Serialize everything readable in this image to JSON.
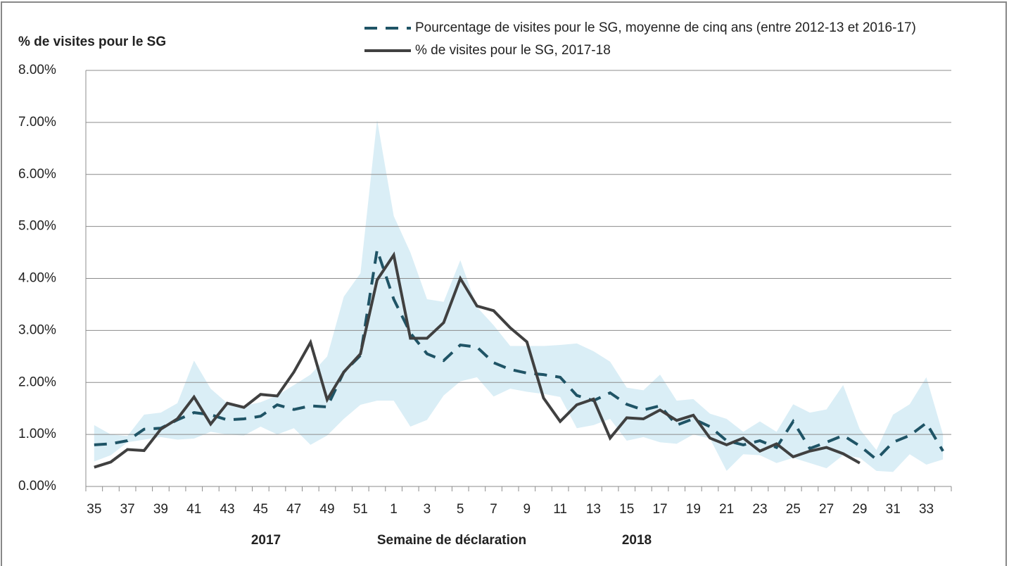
{
  "chart_data": {
    "type": "line",
    "y_label": "% de visites pour le SG",
    "x_label": "Semaine de déclaration",
    "year_labels": [
      "2017",
      "2018"
    ],
    "categories": [
      "35",
      null,
      "37",
      null,
      "39",
      null,
      "41",
      null,
      "43",
      null,
      "45",
      null,
      "47",
      null,
      "49",
      null,
      "51",
      null,
      "1",
      null,
      "3",
      null,
      "5",
      null,
      "7",
      null,
      "9",
      null,
      "11",
      null,
      "13",
      null,
      "15",
      null,
      "17",
      null,
      "19",
      null,
      "21",
      null,
      "23",
      null,
      "25",
      null,
      "27",
      null,
      "29",
      null,
      "31",
      null,
      "33",
      null
    ],
    "ylim": [
      0,
      8
    ],
    "yticks": [
      {
        "value": 0,
        "label": "0.00%"
      },
      {
        "value": 1,
        "label": "1.00%"
      },
      {
        "value": 2,
        "label": "2.00%"
      },
      {
        "value": 3,
        "label": "3.00%"
      },
      {
        "value": 4,
        "label": "4.00%"
      },
      {
        "value": 5,
        "label": "5.00%"
      },
      {
        "value": 6,
        "label": "6.00%"
      },
      {
        "value": 7,
        "label": "7.00%"
      },
      {
        "value": 8,
        "label": "8.00%"
      }
    ],
    "grid": true,
    "range": {
      "color": "#daeef6",
      "upper": [
        1.18,
        1.0,
        0.97,
        1.38,
        1.42,
        1.6,
        2.42,
        1.88,
        1.6,
        1.55,
        1.62,
        1.75,
        1.95,
        2.15,
        2.5,
        3.65,
        4.1,
        7.05,
        5.2,
        4.5,
        3.6,
        3.55,
        4.35,
        3.45,
        3.1,
        2.7,
        2.7,
        2.7,
        2.72,
        2.75,
        2.6,
        2.4,
        1.9,
        1.85,
        2.15,
        1.65,
        1.68,
        1.4,
        1.3,
        1.05,
        1.25,
        1.05,
        1.58,
        1.42,
        1.48,
        1.95,
        1.1,
        0.7,
        1.38,
        1.58,
        2.1,
        1.0
      ],
      "lower": [
        0.48,
        0.6,
        0.85,
        0.9,
        0.95,
        0.9,
        0.92,
        1.05,
        1.0,
        0.98,
        1.15,
        1.0,
        1.12,
        0.8,
        0.98,
        1.3,
        1.57,
        1.65,
        1.65,
        1.15,
        1.28,
        1.75,
        2.02,
        2.1,
        1.73,
        1.88,
        1.82,
        1.78,
        1.72,
        1.12,
        1.18,
        1.3,
        0.88,
        0.95,
        0.85,
        0.82,
        1.0,
        0.92,
        0.3,
        0.62,
        0.6,
        0.45,
        0.55,
        0.45,
        0.35,
        0.6,
        0.55,
        0.3,
        0.28,
        0.62,
        0.42,
        0.52
      ]
    },
    "series": [
      {
        "name": "Pourcentage de visites pour le SG, moyenne de cinq ans (entre 2012-13 et 2016-17)",
        "color": "#1f5466",
        "dashed": true,
        "values": [
          0.8,
          0.82,
          0.88,
          1.1,
          1.12,
          1.28,
          1.42,
          1.38,
          1.28,
          1.3,
          1.35,
          1.57,
          1.48,
          1.55,
          1.53,
          2.2,
          2.52,
          4.55,
          3.6,
          2.95,
          2.55,
          2.42,
          2.72,
          2.68,
          2.38,
          2.25,
          2.18,
          2.15,
          2.1,
          1.75,
          1.65,
          1.8,
          1.58,
          1.47,
          1.55,
          1.18,
          1.3,
          1.15,
          0.88,
          0.8,
          0.88,
          0.75,
          1.25,
          0.73,
          0.85,
          0.98,
          0.78,
          0.52,
          0.85,
          0.98,
          1.22,
          0.68
        ]
      },
      {
        "name": "% de visites pour le SG, 2017-18",
        "color": "#404040",
        "dashed": false,
        "values": [
          0.37,
          0.47,
          0.71,
          0.69,
          1.1,
          1.3,
          1.72,
          1.2,
          1.6,
          1.52,
          1.77,
          1.74,
          2.2,
          2.77,
          1.67,
          2.2,
          2.55,
          3.97,
          4.45,
          2.85,
          2.85,
          3.15,
          4.0,
          3.47,
          3.38,
          3.05,
          2.78,
          1.7,
          1.25,
          1.57,
          1.68,
          0.93,
          1.32,
          1.3,
          1.47,
          1.27,
          1.37,
          0.93,
          0.8,
          0.93,
          0.68,
          0.82,
          0.57,
          0.68,
          0.75,
          0.63,
          0.45,
          null,
          null,
          null,
          null,
          null
        ]
      }
    ]
  }
}
